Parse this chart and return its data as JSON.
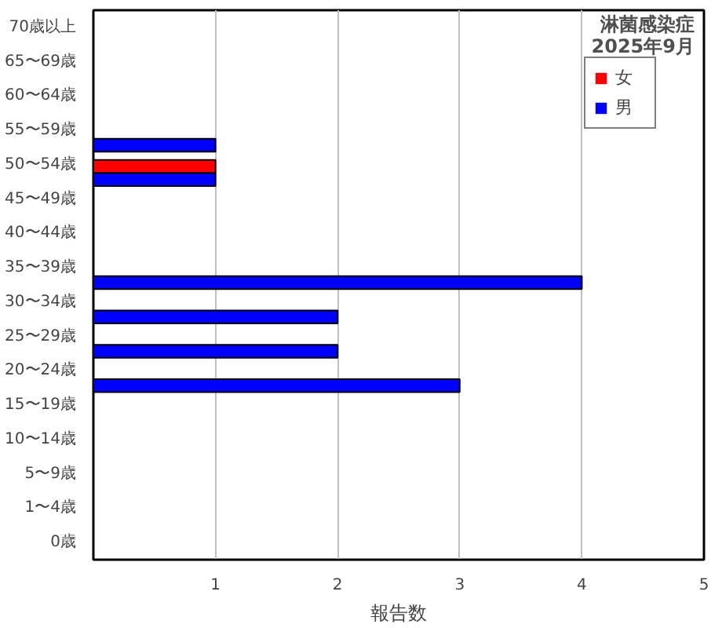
{
  "chart_data": {
    "type": "bar",
    "orientation": "horizontal",
    "title": "淋菌感染症",
    "subtitle": "2025年9月",
    "xlabel": "報告数",
    "categories": [
      "70歳以上",
      "65〜69歳",
      "60〜64歳",
      "55〜59歳",
      "50〜54歳",
      "45〜49歳",
      "40〜44歳",
      "35〜39歳",
      "30〜34歳",
      "25〜29歳",
      "20〜24歳",
      "15〜19歳",
      "10〜14歳",
      "5〜9歳",
      "1〜4歳",
      "0歳"
    ],
    "series": [
      {
        "name": "女",
        "color": "#ff0000",
        "values": [
          0,
          0,
          0,
          0,
          1,
          0,
          0,
          0,
          0,
          0,
          0,
          0,
          0,
          0,
          0,
          0
        ]
      },
      {
        "name": "男",
        "color": "#0000ff",
        "values": [
          0,
          0,
          0,
          1,
          1,
          0,
          0,
          4,
          2,
          2,
          3,
          0,
          0,
          0,
          0,
          0
        ]
      }
    ],
    "xlim": [
      0,
      5
    ],
    "xticks": [
      {
        "value": 0,
        "label": null
      },
      1,
      2,
      3,
      4,
      5
    ],
    "grid": "x",
    "legend": "top right"
  }
}
